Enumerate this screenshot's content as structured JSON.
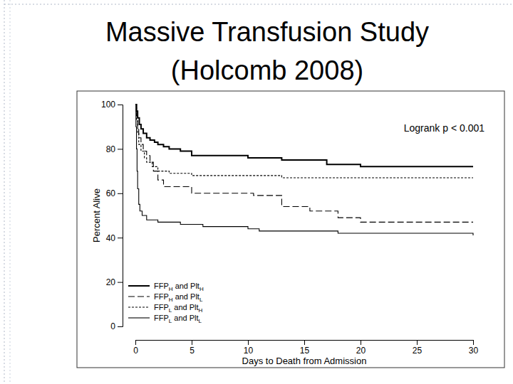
{
  "chart_data": {
    "type": "step",
    "title": "Massive Transfusion Study\n(Holcomb 2008)",
    "annotation": "Logrank p < 0.001",
    "x_label": "Days to Death from Admission",
    "y_label": "Percent Alive",
    "xlim": [
      0,
      30
    ],
    "xticks": [
      0,
      5,
      10,
      15,
      20,
      25,
      30
    ],
    "ylim": [
      0,
      100
    ],
    "yticks": [
      0,
      20,
      40,
      60,
      80,
      100
    ],
    "legend": "bottom-left",
    "grid": false,
    "series": [
      {
        "name": "FFPH and PltH",
        "color": "#000000",
        "line_style": "thick",
        "x": [
          0,
          0.1,
          0.2,
          0.35,
          0.5,
          0.7,
          1,
          1.3,
          1.7,
          2,
          2.5,
          3,
          4,
          5,
          8,
          10,
          13,
          17,
          20,
          30
        ],
        "values": [
          100,
          97,
          94,
          91,
          89,
          87,
          85,
          84,
          83,
          82,
          81,
          80,
          79,
          77,
          77,
          76,
          75,
          73,
          72,
          72
        ]
      },
      {
        "name": "FFPH and PltL",
        "color": "#000000",
        "line_style": "longdash",
        "x": [
          0,
          0.1,
          0.2,
          0.3,
          0.5,
          0.7,
          1,
          1.3,
          1.6,
          2,
          2.5,
          4,
          5,
          8,
          10.5,
          13,
          15.5,
          18,
          20,
          30
        ],
        "values": [
          100,
          95,
          90,
          85,
          82,
          79,
          77,
          74,
          70,
          66,
          63,
          63,
          60,
          60,
          59,
          54,
          52,
          49,
          47,
          47
        ]
      },
      {
        "name": "FFPL and PltH",
        "color": "#000000",
        "line_style": "dash",
        "x": [
          0,
          0.1,
          0.2,
          0.3,
          0.5,
          0.8,
          1,
          1.5,
          2,
          3,
          5,
          13,
          30
        ],
        "values": [
          100,
          93,
          87,
          82,
          79,
          76,
          74,
          72,
          70,
          69,
          68,
          67,
          67
        ]
      },
      {
        "name": "FFPL and PltL",
        "color": "#000000",
        "line_style": "solid",
        "x": [
          0,
          0.05,
          0.1,
          0.15,
          0.2,
          0.3,
          0.4,
          0.6,
          1,
          2,
          4,
          6,
          10,
          11,
          18,
          30
        ],
        "values": [
          100,
          90,
          80,
          70,
          62,
          55,
          52,
          50,
          48,
          47,
          46,
          45,
          44,
          43,
          42,
          41
        ]
      }
    ]
  }
}
